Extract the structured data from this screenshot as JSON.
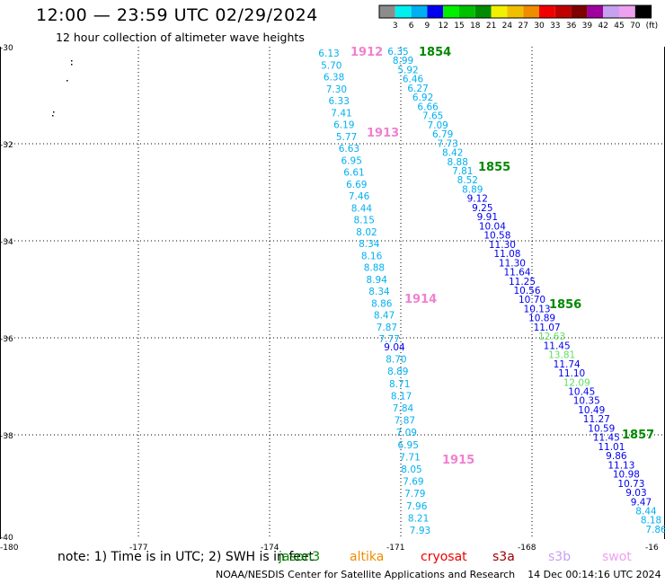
{
  "header": {
    "title": "12:00 — 23:59 UTC 02/29/2024",
    "subtitle": "12 hour collection of altimeter wave heights"
  },
  "colorbar": {
    "unit": "(ft)",
    "labels": [
      "3",
      "6",
      "9",
      "12",
      "15",
      "18",
      "21",
      "24",
      "27",
      "30",
      "33",
      "36",
      "39",
      "42",
      "45",
      "70"
    ],
    "colors": [
      "#8c8c8c",
      "#00f0f0",
      "#00b0f0",
      "#0000f0",
      "#00f000",
      "#00c000",
      "#008c00",
      "#f0f000",
      "#f0c000",
      "#f08c00",
      "#f00000",
      "#c00000",
      "#800000",
      "#a000a0",
      "#c8a0f0",
      "#f0a0f0",
      "#000000"
    ]
  },
  "axes": {
    "lat_labels": [
      "-30",
      "-32",
      "-34",
      "-36",
      "-38",
      "-40"
    ],
    "lon_labels": [
      "-180",
      "-177",
      "-174",
      "-171",
      "-168",
      "-16"
    ]
  },
  "tracks": [
    {
      "id": "1912",
      "label": "1912",
      "label_color": "#f080d0",
      "values": [
        "6.13",
        "5.70",
        "6.38",
        "7.30",
        "6.33",
        "7.41",
        "6.19",
        "5.77",
        "6.63",
        "6.95",
        "6.61",
        "6.69",
        "7.46",
        "8.44",
        "8.15",
        "8.02",
        "8.34",
        "8.16",
        "8.88",
        "8.94",
        "8.34",
        "8.86",
        "8.47",
        "7.87",
        "7.77"
      ]
    },
    {
      "id": "1913",
      "label": "1913",
      "label_color": "#f080d0"
    },
    {
      "id": "1914",
      "label": "1914",
      "label_color": "#f080d0",
      "values": [
        "9.04",
        "8.70",
        "8.89",
        "8.71",
        "8.17",
        "7.84",
        "7.87",
        "7.09",
        "6.95",
        "7.71",
        "8.05",
        "7.69",
        "7.79",
        "7.96",
        "8.21",
        "7.93"
      ]
    },
    {
      "id": "1915",
      "label": "1915",
      "label_color": "#f080d0"
    },
    {
      "id": "1854",
      "label": "1854",
      "label_color": "#008800",
      "values": [
        "6.35",
        "8.99",
        "5.92",
        "6.46",
        "6.27",
        "6.92",
        "6.66",
        "7.65",
        "7.09",
        "6.79",
        "7.73",
        "8.42",
        "8.88",
        "7.81",
        "8.52",
        "8.89",
        "9.12",
        "9.25",
        "9.91",
        "10.04",
        "10.58",
        "11.30",
        "11.08",
        "11.30",
        "11.64",
        "11.25",
        "10.56",
        "10.70",
        "10.13",
        "10.89",
        "11.07",
        "12.63",
        "11.45",
        "13.81",
        "11.74",
        "11.10",
        "12.09",
        "10.45",
        "10.35",
        "10.49",
        "11.27",
        "10.59",
        "11.45",
        "11.01",
        "9.86",
        "11.13",
        "10.98",
        "10.73",
        "9.03",
        "9.47",
        "8.44",
        "8.18",
        "7.86"
      ]
    },
    {
      "id": "1855",
      "label": "1855",
      "label_color": "#008800"
    },
    {
      "id": "1856",
      "label": "1856",
      "label_color": "#008800"
    },
    {
      "id": "1857",
      "label": "1857",
      "label_color": "#008800"
    }
  ],
  "note": {
    "prefix": "note:  1) Time is in UTC; 2) SWH is in feet",
    "missions": [
      {
        "name": "jason3",
        "color": "#008800"
      },
      {
        "name": "altika",
        "color": "#f08c00"
      },
      {
        "name": "cryosat",
        "color": "#f00000"
      },
      {
        "name": "s3a",
        "color": "#a00000"
      },
      {
        "name": "s3b",
        "color": "#c8a0f0"
      },
      {
        "name": "swot",
        "color": "#f0a0f0"
      }
    ]
  },
  "footer": {
    "credit": "NOAA/NESDIS Center for Satellite Applications and Research",
    "timestamp": "14 Dec 00:14:16 UTC 2024"
  }
}
